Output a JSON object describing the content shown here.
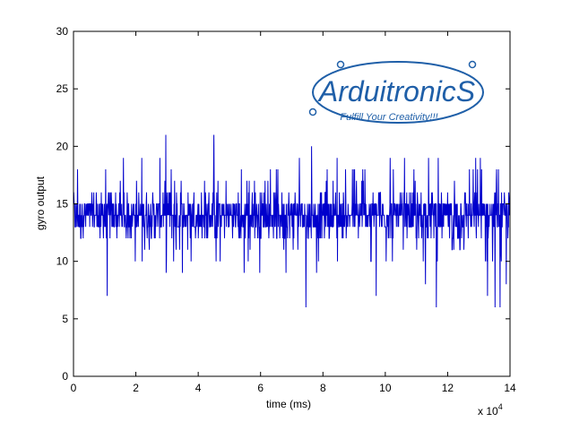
{
  "chart_data": {
    "type": "line",
    "title": "",
    "xlabel": "time (ms)",
    "ylabel": "gyro output",
    "x_exponent_label": "x 10",
    "x_exponent_power": "4",
    "xlim": [
      0,
      140000
    ],
    "ylim": [
      0,
      30
    ],
    "x_ticks": [
      0,
      20000,
      40000,
      60000,
      80000,
      100000,
      120000,
      140000
    ],
    "x_tick_labels": [
      "0",
      "2",
      "4",
      "6",
      "8",
      "10",
      "12",
      "14"
    ],
    "y_ticks": [
      0,
      5,
      10,
      15,
      20,
      25,
      30
    ],
    "y_tick_labels": [
      "0",
      "5",
      "10",
      "15",
      "20",
      "25",
      "30"
    ],
    "grid": false,
    "series": [
      {
        "color": "#0000cc",
        "sample_count": 1400,
        "x_start": 0,
        "x_end": 140000,
        "baseline": 14,
        "typical_range": [
          12,
          16
        ],
        "min": 6,
        "max": 22
      }
    ]
  },
  "logo": {
    "name": "ArduitronicS",
    "tagline": "Fulfill Your Creativity!!!",
    "color": "#1f5fa8"
  }
}
